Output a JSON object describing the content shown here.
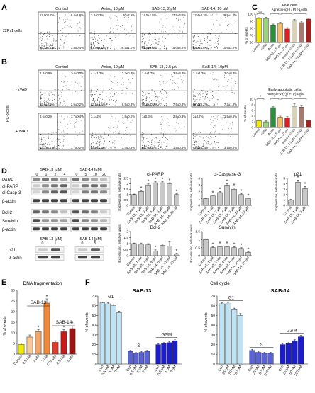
{
  "panels": {
    "A": {
      "label": "A",
      "cell_line": "22Rv1 cells",
      "columns": [
        "Control",
        "Aniso, 10 μM",
        "SAB-13, 2 μM",
        "SAB-14, 10 μM"
      ],
      "quadrants": [
        {
          "ul": "17.902.7%",
          "ur": "18.4±1.9%",
          "ll": "66.3±1.1%",
          "lr": "3.4±0.4%"
        },
        {
          "ul": "3.3±0.3%",
          "ur": "30±2.9%",
          "ll": "47.5±4.1%",
          "lr": "20.2±1.1%"
        },
        {
          "ul": "14.5±1.8%",
          "ur": "27.9±3.2%",
          "ll": "42.5±8.6%",
          "lr": "15.0±3.6%"
        },
        {
          "ul": "12.4±0.3%",
          "ur": "29.8±1.5%",
          "ll": "48.2±1.3%",
          "lr": "10.6±2.0%"
        }
      ]
    },
    "B": {
      "label": "B",
      "cell_line": "PC-3 cells",
      "rows": [
        "- zVAD",
        "+ zVAD"
      ],
      "columns": [
        "Control",
        "Aniso, 10 μM",
        "SAB-13, 2.5 μM",
        "SAB-14, 10μM"
      ],
      "quadrants": [
        [
          {
            "ul": "2.3±0.9%",
            "ur": "1.4±0.2%",
            "ll": "93.6±0.9%",
            "lr": "2.5±0.2%"
          },
          {
            "ul": "4.1±1.3%",
            "ur": "3.3±0.3%",
            "ll": "83.6±1.5%",
            "lr": "6.9±0.3%"
          },
          {
            "ul": "2.6±1.7%",
            "ur": "3.8±0.3%",
            "ll": "86.6±0.6%",
            "lr": "7.5±0.3%"
          },
          {
            "ul": "2.4±1.3%",
            "ur": "3.0±0.3%",
            "ll": "87.4±2.2%",
            "lr": "7.2±1.8%"
          }
        ],
        [
          {
            "ul": "2.6±0.2%",
            "ur": "1.7±0.4%",
            "ll": "93.2±1.1%",
            "lr": "1.7±0.2%"
          },
          {
            "ul": "3.1±2%",
            "ur": "1.8±0.2%",
            "ll": "92.6±1.9%",
            "lr": "3.4±0.6%"
          },
          {
            "ul": "1±0.3%",
            "ur": "2.8±0.3%",
            "ll": "95.7±0.6%",
            "lr": "1.8±0.3%"
          },
          {
            "ul": "2±0.7%",
            "ur": "1.9±0.5%",
            "ll": "92.4±4.3%",
            "lr": "3.1±0.4%"
          }
        ]
      ]
    },
    "C": {
      "label": "C",
      "tick_labels": [
        "Control",
        "zVAD",
        "Aniso",
        "SAB-13, 2.5 μM",
        "SAB-14, 10 μM",
        "Aniso + zVAD",
        "SAB-13, 2.5 μM + zVAD",
        "SAB-14, 10 μM + zVAD"
      ],
      "sig_ns": "n.s.",
      "star": "*",
      "top": {
        "title": "Alive cells",
        "subtitle": "Annexin-V (-) / PI (-) cells",
        "ylabel": "% of events",
        "yticks": [
          "100",
          "90",
          "80",
          "70",
          "60"
        ]
      },
      "bottom": {
        "title": "Early apoptotic cells,",
        "subtitle": "Annexin-V (+) / PI (-) cells",
        "ylabel": "% of events",
        "yticks": [
          "10",
          "8",
          "6",
          "4",
          "2",
          "0"
        ]
      }
    },
    "D": {
      "label": "D",
      "blot1_title": "SAB-13 [μM]",
      "blot1_doses": [
        "0",
        "1",
        "2",
        "4"
      ],
      "blot2_title": "SAB-14 [μM]",
      "blot2_doses": [
        "0",
        "5",
        "10",
        "20"
      ],
      "bands": [
        "PARP",
        "cl-PARP",
        "cl-Casp-3",
        "β-actin",
        "Bcl-2",
        "Survivin",
        "β-actin"
      ],
      "p21_blot1_title": "SAB-13 [μM]",
      "p21_blot1_doses": [
        "0",
        "1"
      ],
      "p21_blot2_title": "SAB-14 [μM]",
      "p21_blot2_doses": [
        "0",
        "5"
      ],
      "p21_bands": [
        "p21",
        "β-actin"
      ],
      "ylabel": "Expression, relative units",
      "categories": [
        "Control",
        "SAB-13, 1 μM",
        "SAB-13, 2 μM",
        "SAB-13, 4 μM",
        "SAB-14, 5 μM",
        "SAB-14, 10 μM",
        "SAB-14, 20 μM"
      ],
      "p21_categories": [
        "Control",
        "SAB-13, 1 μM",
        "SAB-14, 5 μM"
      ],
      "star": "*"
    },
    "E": {
      "label": "E",
      "title": "DNA fragmentation",
      "ylabel": "% of events",
      "group1": "SAB-13",
      "group2": "SAB-14",
      "star": "*"
    },
    "F": {
      "label": "F",
      "title": "Cell cycle",
      "left_title": "SAB-13",
      "right_title": "SAB-14",
      "ylabel": "% of events",
      "phases": [
        "G1",
        "S",
        "G2/M"
      ],
      "left_categories": [
        "Con",
        "0.5 μM",
        "1 μM",
        "2 μM"
      ],
      "right_categories": [
        "Con",
        "25 μM",
        "50 μM",
        "100 μM"
      ],
      "yticks": [
        "70",
        "60",
        "50",
        "40",
        "30",
        "20",
        "10",
        "0"
      ]
    }
  },
  "chart_data": [
    {
      "type": "bar",
      "panel": "C-top",
      "title": "Alive cells",
      "ylabel": "% of events",
      "categories": [
        "Control",
        "zVAD",
        "Aniso",
        "SAB-13, 2.5 μM",
        "SAB-14, 10 μM",
        "Aniso + zVAD",
        "SAB-13, 2.5 μM + zVAD",
        "SAB-14, 10 μM + zVAD"
      ],
      "values": [
        94,
        94,
        84,
        87,
        79,
        91,
        88,
        93
      ],
      "errors": [
        1,
        1.5,
        2,
        1.5,
        2,
        1.5,
        2,
        1.5
      ],
      "colors": [
        "#f2e900",
        "#9bd27a",
        "#2d8f3e",
        "#f4c06a",
        "#d81e1e",
        "#d8d2b8",
        "#a67a70",
        "#a61f1f"
      ],
      "ylim": [
        60,
        100
      ]
    },
    {
      "type": "bar",
      "panel": "C-bottom",
      "title": "Early apoptotic cells,",
      "ylabel": "% of events",
      "categories": [
        "Control",
        "zVAD",
        "Aniso",
        "SAB-13, 2.5 μM",
        "SAB-14, 10 μM",
        "Aniso + zVAD",
        "SAB-13, 2.5 μM + zVAD",
        "SAB-14, 10 μM + zVAD"
      ],
      "values": [
        2.4,
        2.0,
        7.0,
        3.6,
        3.4,
        7.5,
        7.2,
        2.4
      ],
      "errors": [
        0.3,
        0.3,
        0.5,
        0.4,
        0.4,
        0.8,
        0.6,
        0.3
      ],
      "colors": [
        "#f2e900",
        "#9bd27a",
        "#2d8f3e",
        "#f4c06a",
        "#d81e1e",
        "#d8d2b8",
        "#a67a70",
        "#a61f1f"
      ],
      "ylim": [
        0,
        10
      ]
    },
    {
      "type": "bar",
      "panel": "D",
      "title": "cl-PARP",
      "ylabel": "Expression, relative units",
      "categories": [
        "Control",
        "SAB-13, 1 μM",
        "SAB-13, 2 μM",
        "SAB-13, 4 μM",
        "SAB-14, 5 μM",
        "SAB-14, 10 μM",
        "SAB-14, 20 μM"
      ],
      "values": [
        1.0,
        1.3,
        1.9,
        2.1,
        2.1,
        2.0,
        1.0
      ],
      "errors": [
        0.05,
        0.08,
        0.1,
        0.1,
        0.1,
        0.1,
        0.08
      ],
      "yticks": [
        0,
        0.5,
        1,
        1.5,
        2,
        2.5
      ],
      "ylim": [
        0,
        2.5
      ],
      "sig": [
        false,
        true,
        true,
        true,
        true,
        true,
        true
      ]
    },
    {
      "type": "bar",
      "panel": "D",
      "title": "cl-Caspase-3",
      "ylabel": "Expression, relative units",
      "categories": [
        "Control",
        "SAB-13, 1 μM",
        "SAB-13, 2 μM",
        "SAB-13, 4 μM",
        "SAB-14, 5 μM",
        "SAB-14, 10 μM",
        "SAB-14, 20 μM"
      ],
      "values": [
        1.0,
        1.4,
        1.9,
        3.0,
        2.4,
        1.6,
        1.0
      ],
      "errors": [
        0.05,
        0.1,
        0.15,
        0.2,
        0.2,
        0.15,
        0.1
      ],
      "yticks": [
        0,
        1,
        2,
        3,
        4
      ],
      "ylim": [
        0,
        4
      ],
      "sig": [
        false,
        true,
        true,
        true,
        true,
        true,
        true
      ]
    },
    {
      "type": "bar",
      "panel": "D",
      "title": "p21",
      "ylabel": "Expression, relative units",
      "categories": [
        "Control",
        "SAB-13, 1 μM",
        "SAB-14, 5 μM"
      ],
      "values": [
        1.0,
        4.3,
        3.1
      ],
      "errors": [
        0.1,
        0.4,
        0.4
      ],
      "yticks": [
        0,
        1,
        2,
        3,
        4,
        5
      ],
      "ylim": [
        0,
        5
      ],
      "sig": [
        false,
        true,
        true
      ]
    },
    {
      "type": "bar",
      "panel": "D",
      "title": "Bcl-2",
      "ylabel": "Expression, relative units",
      "categories": [
        "Control",
        "SAB-13, 1 μM",
        "SAB-13, 2 μM",
        "SAB-13, 4 μM",
        "SAB-14, 5 μM",
        "SAB-14, 10 μM",
        "SAB-14, 20 μM"
      ],
      "values": [
        1.0,
        0.95,
        0.9,
        0.4,
        0.85,
        0.8,
        0.15
      ],
      "errors": [
        0.05,
        0.1,
        0.1,
        0.08,
        0.1,
        0.35,
        0.05
      ],
      "yticks": [
        0,
        0.5,
        1,
        1.5,
        2
      ],
      "ylim": [
        0,
        2
      ],
      "sig": [
        false,
        false,
        false,
        true,
        false,
        false,
        true
      ]
    },
    {
      "type": "bar",
      "panel": "D",
      "title": "Survivin",
      "ylabel": "Expression, relative units",
      "categories": [
        "Control",
        "SAB-13, 1 μM",
        "SAB-13, 2 μM",
        "SAB-13, 4 μM",
        "SAB-14, 5 μM",
        "SAB-14, 10 μM",
        "SAB-14, 20 μM"
      ],
      "values": [
        1.0,
        0.5,
        0.55,
        0.55,
        0.5,
        0.45,
        0.2
      ],
      "errors": [
        0.05,
        0.05,
        0.05,
        0.05,
        0.05,
        0.05,
        0.04
      ],
      "yticks": [
        0,
        0.5,
        1,
        1.5
      ],
      "ylim": [
        0,
        1.5
      ],
      "sig": [
        false,
        true,
        true,
        true,
        true,
        true,
        true
      ]
    },
    {
      "type": "bar",
      "panel": "E",
      "title": "DNA fragmentation",
      "ylabel": "% of events",
      "categories": [
        "Control",
        "0.5 μM",
        "1 μM",
        "2 μM",
        "1.25 μM",
        "2.5 μM",
        "5 μM"
      ],
      "values": [
        4.5,
        8,
        10.5,
        24,
        5.5,
        10.5,
        12
      ],
      "errors": [
        0.6,
        1.0,
        1.0,
        2.0,
        0.8,
        1.0,
        1.2
      ],
      "colors": [
        "#f2e900",
        "#f6c99a",
        "#f3a66a",
        "#ee8a3a",
        "#e03c2c",
        "#c41b1b",
        "#a01313"
      ],
      "yticks": [
        0,
        5,
        10,
        15,
        20,
        25,
        30
      ],
      "ylim": [
        0,
        30
      ],
      "sig": [
        false,
        false,
        true,
        true,
        false,
        true,
        true
      ]
    },
    {
      "type": "bar",
      "panel": "F-left",
      "title": "SAB-13",
      "ylabel": "% of events",
      "categories": [
        "Con",
        "0.5 μM",
        "1 μM",
        "2 μM"
      ],
      "series": [
        {
          "name": "G1",
          "values": [
            63,
            62,
            60,
            53
          ],
          "errors": [
            1,
            1,
            1.5,
            1.5
          ],
          "color": "#bfe3f2"
        },
        {
          "name": "S",
          "values": [
            13,
            11,
            12,
            13
          ],
          "errors": [
            1,
            1,
            1,
            1
          ],
          "color": "#5a62d8"
        },
        {
          "name": "G2/M",
          "values": [
            20,
            21,
            22,
            24
          ],
          "errors": [
            1,
            1,
            1,
            1
          ],
          "color": "#1c1ec9"
        }
      ],
      "yticks": [
        0,
        10,
        20,
        30,
        40,
        50,
        60,
        70
      ],
      "ylim": [
        0,
        70
      ]
    },
    {
      "type": "bar",
      "panel": "F-right",
      "title": "SAB-14",
      "ylabel": "% of events",
      "categories": [
        "Con",
        "25 μM",
        "50 μM",
        "100 μM"
      ],
      "series": [
        {
          "name": "G1",
          "values": [
            62,
            62,
            56,
            50
          ],
          "errors": [
            1,
            1,
            1.5,
            2
          ],
          "color": "#bfe3f2"
        },
        {
          "name": "S",
          "values": [
            14,
            12,
            11,
            11
          ],
          "errors": [
            1,
            1,
            1,
            1
          ],
          "color": "#5a62d8"
        },
        {
          "name": "G2/M",
          "values": [
            20,
            21,
            24,
            28
          ],
          "errors": [
            1,
            1,
            1,
            1.5
          ],
          "color": "#1c1ec9"
        }
      ],
      "yticks": [
        0,
        10,
        20,
        30,
        40,
        50,
        60,
        70
      ],
      "ylim": [
        0,
        70
      ]
    }
  ]
}
